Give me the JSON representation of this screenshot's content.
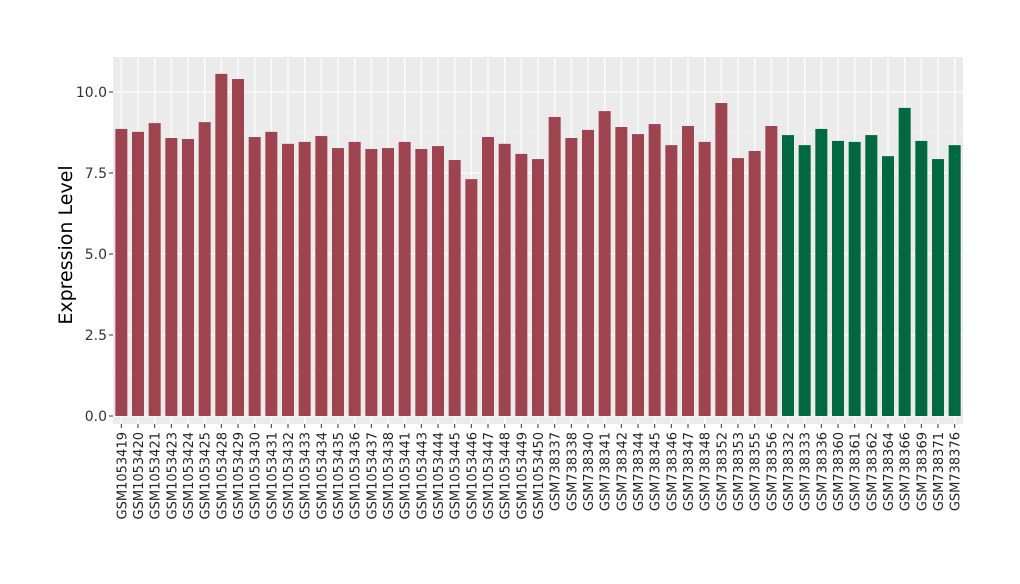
{
  "chart_data": {
    "type": "bar",
    "title": "",
    "xlabel": "",
    "ylabel": "Expression Level",
    "ylim": [
      -0.3,
      11.0
    ],
    "yticks": [
      0.0,
      2.5,
      5.0,
      7.5,
      10.0
    ],
    "ytick_labels": [
      "0.0",
      "2.5",
      "5.0",
      "7.5",
      "10.0"
    ],
    "grid": true,
    "legend": "none",
    "colors": {
      "group1": "#9e4350",
      "group2": "#006943",
      "panel": "#ebebeb",
      "grid": "#ffffff"
    },
    "categories": [
      "GSM1053419",
      "GSM1053420",
      "GSM1053421",
      "GSM1053423",
      "GSM1053424",
      "GSM1053425",
      "GSM1053428",
      "GSM1053429",
      "GSM1053430",
      "GSM1053431",
      "GSM1053432",
      "GSM1053433",
      "GSM1053434",
      "GSM1053435",
      "GSM1053436",
      "GSM1053437",
      "GSM1053438",
      "GSM1053441",
      "GSM1053443",
      "GSM1053444",
      "GSM1053445",
      "GSM1053446",
      "GSM1053447",
      "GSM1053448",
      "GSM1053449",
      "GSM1053450",
      "GSM738337",
      "GSM738338",
      "GSM738340",
      "GSM738341",
      "GSM738342",
      "GSM738344",
      "GSM738345",
      "GSM738346",
      "GSM738347",
      "GSM738348",
      "GSM738352",
      "GSM738353",
      "GSM738355",
      "GSM738356",
      "GSM738332",
      "GSM738333",
      "GSM738336",
      "GSM738360",
      "GSM738361",
      "GSM738362",
      "GSM738364",
      "GSM738366",
      "GSM738369",
      "GSM738371",
      "GSM738376"
    ],
    "values": [
      8.86,
      8.77,
      9.04,
      8.58,
      8.55,
      9.07,
      10.56,
      10.4,
      8.61,
      8.77,
      8.4,
      8.46,
      8.64,
      8.27,
      8.46,
      8.24,
      8.27,
      8.46,
      8.24,
      8.33,
      7.9,
      7.31,
      8.61,
      8.4,
      8.09,
      7.93,
      9.23,
      8.58,
      8.83,
      9.41,
      8.92,
      8.7,
      9.01,
      8.36,
      8.95,
      8.46,
      9.66,
      7.96,
      8.18,
      8.95,
      8.67,
      8.36,
      8.86,
      8.49,
      8.46,
      8.67,
      8.02,
      9.51,
      8.49,
      7.93,
      8.36
    ],
    "groups": [
      "group1",
      "group1",
      "group1",
      "group1",
      "group1",
      "group1",
      "group1",
      "group1",
      "group1",
      "group1",
      "group1",
      "group1",
      "group1",
      "group1",
      "group1",
      "group1",
      "group1",
      "group1",
      "group1",
      "group1",
      "group1",
      "group1",
      "group1",
      "group1",
      "group1",
      "group1",
      "group1",
      "group1",
      "group1",
      "group1",
      "group1",
      "group1",
      "group1",
      "group1",
      "group1",
      "group1",
      "group1",
      "group1",
      "group1",
      "group1",
      "group2",
      "group2",
      "group2",
      "group2",
      "group2",
      "group2",
      "group2",
      "group2",
      "group2",
      "group2",
      "group2"
    ]
  }
}
